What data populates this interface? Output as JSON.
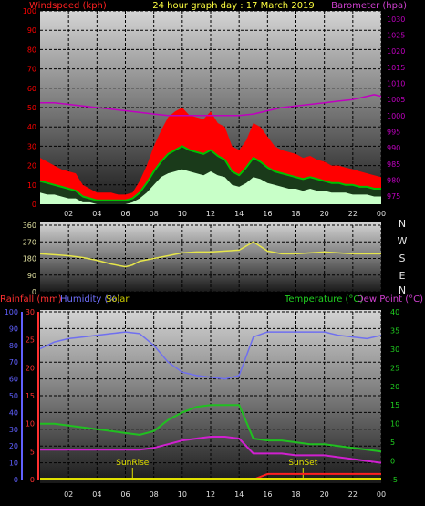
{
  "header": {
    "left_label": "Windspeed (kph)",
    "center_label": "24 hour graph day : 17 March 2019",
    "right_label": "Barometer (hpa)"
  },
  "mid_header": {
    "rain_label": "Rainfall (mm)",
    "humidity_label": "Humidity (%)",
    "solar_label": "Solar",
    "temp_label": "Temperature (°C)",
    "dew_label": "Dew Point (°C)"
  },
  "colors": {
    "wind_gust": "#ff0000",
    "wind_avg": "#c8ffc8",
    "wind_mid": "#00c000",
    "barometer": "#c000c0",
    "direction": "#e6e64a",
    "humidity": "#6f6ff0",
    "temperature": "#20c020",
    "dewpoint": "#d020d0",
    "rainfall": "#ff2020",
    "solar": "#e0e000",
    "rain_axis": "#ff3030",
    "humidity_axis": "#6060ff",
    "temp_axis": "#20d020"
  },
  "time_ticks": [
    "02",
    "04",
    "06",
    "08",
    "10",
    "12",
    "14",
    "16",
    "18",
    "20",
    "22",
    "00"
  ],
  "compass": [
    "N",
    "W",
    "S",
    "E",
    "N"
  ],
  "chart_data": [
    {
      "type": "line",
      "name_hint": "wind-barometer",
      "left_axis": {
        "ticks": [
          0,
          10,
          20,
          30,
          40,
          50,
          60,
          70,
          80,
          90,
          100
        ],
        "range": [
          0,
          100
        ]
      },
      "right_axis": {
        "ticks": [
          975,
          980,
          985,
          990,
          995,
          1000,
          1005,
          1010,
          1015,
          1020,
          1025,
          1030
        ],
        "range": [
          972.5,
          1032.5
        ]
      },
      "gust_x": [
        0,
        0.5,
        1,
        1.5,
        2,
        2.5,
        3,
        3.5,
        4,
        4.5,
        5,
        5.5,
        6,
        6.5,
        7,
        7.5,
        8,
        8.5,
        9,
        9.5,
        10,
        10.5,
        11,
        11.5,
        12,
        12.5,
        13,
        13.5,
        14,
        14.5,
        15,
        15.5,
        16,
        16.5,
        17,
        17.5,
        18,
        18.5,
        19,
        19.5,
        20,
        20.5,
        21,
        21.5,
        22,
        22.5,
        23,
        23.5,
        24
      ],
      "gust": [
        24,
        22,
        20,
        18,
        17,
        16,
        10,
        8,
        6,
        6,
        6,
        5,
        5,
        6,
        12,
        20,
        30,
        38,
        45,
        48,
        50,
        46,
        45,
        44,
        48,
        42,
        40,
        30,
        28,
        33,
        42,
        40,
        35,
        30,
        28,
        27,
        26,
        24,
        25,
        23,
        22,
        20,
        20,
        19,
        18,
        17,
        16,
        15,
        14
      ],
      "wind_avg": [
        12,
        11,
        10,
        9,
        8,
        7,
        4,
        3,
        2,
        2,
        2,
        2,
        2,
        3,
        6,
        11,
        17,
        22,
        26,
        28,
        30,
        28,
        27,
        26,
        28,
        25,
        23,
        17,
        15,
        19,
        24,
        22,
        19,
        17,
        16,
        15,
        14,
        13,
        14,
        13,
        12,
        11,
        11,
        10,
        10,
        9,
        9,
        8,
        8
      ],
      "wind_min": [
        6,
        5,
        5,
        4,
        3,
        3,
        1,
        1,
        0,
        0,
        0,
        0,
        0,
        1,
        3,
        6,
        10,
        14,
        16,
        17,
        18,
        17,
        16,
        15,
        17,
        15,
        14,
        10,
        9,
        11,
        14,
        13,
        11,
        10,
        9,
        8,
        8,
        7,
        8,
        7,
        7,
        6,
        6,
        6,
        5,
        5,
        5,
        4,
        4
      ],
      "baro_x": [
        0,
        1,
        2,
        3,
        4,
        5,
        6,
        7,
        8,
        9,
        10,
        11,
        12,
        13,
        14,
        15,
        16,
        17,
        18,
        19,
        20,
        21,
        22,
        23,
        23.5,
        24
      ],
      "barometer": [
        1004,
        1004,
        1003.5,
        1003,
        1002.5,
        1002,
        1001.5,
        1001,
        1000.5,
        1000,
        1000,
        1000,
        1000,
        1000,
        1000,
        1000.5,
        1001.5,
        1002.5,
        1003,
        1003.5,
        1004,
        1004.5,
        1005,
        1006,
        1006.5,
        1006
      ]
    },
    {
      "type": "line",
      "name_hint": "wind-direction",
      "left_axis": {
        "ticks": [
          0,
          90,
          180,
          270,
          360
        ],
        "range": [
          0,
          360
        ]
      },
      "x": [
        0,
        1,
        2,
        3,
        4,
        5,
        6,
        6.5,
        7,
        8,
        9,
        10,
        11,
        12,
        13,
        14,
        15,
        15.5,
        16,
        17,
        18,
        19,
        20,
        21,
        22,
        23,
        24
      ],
      "direction": [
        205,
        200,
        195,
        185,
        170,
        150,
        135,
        145,
        165,
        180,
        195,
        210,
        215,
        215,
        220,
        225,
        270,
        245,
        220,
        205,
        205,
        210,
        215,
        210,
        205,
        205,
        205
      ]
    },
    {
      "type": "line",
      "name_hint": "temperature-humidity",
      "rain_axis": {
        "ticks": [
          0,
          5,
          10,
          15,
          20,
          25,
          30
        ],
        "range": [
          0,
          30
        ]
      },
      "humidity_axis": {
        "ticks": [
          0,
          10,
          20,
          30,
          40,
          50,
          60,
          70,
          80,
          90,
          100
        ],
        "range": [
          0,
          100
        ]
      },
      "temp_axis": {
        "ticks": [
          -5,
          0,
          5,
          10,
          15,
          20,
          25,
          30,
          35,
          40
        ],
        "range": [
          -5,
          40
        ]
      },
      "x": [
        0,
        1,
        2,
        3,
        4,
        5,
        6,
        7,
        8,
        9,
        10,
        11,
        12,
        13,
        14,
        15,
        16,
        17,
        18,
        19,
        20,
        21,
        22,
        23,
        24
      ],
      "humidity": [
        78,
        82,
        84,
        85,
        86,
        87,
        88,
        87,
        80,
        70,
        64,
        62,
        61,
        60,
        62,
        85,
        88,
        88,
        88,
        88,
        88,
        86,
        85,
        84,
        86
      ],
      "temperature": [
        10,
        10,
        9.5,
        9,
        8.5,
        8,
        7.5,
        7,
        8,
        11,
        13,
        14.5,
        15,
        15,
        15,
        6,
        5.5,
        5.5,
        5,
        4.5,
        4.5,
        4,
        3.5,
        3,
        2.5
      ],
      "dewpoint": [
        3,
        3,
        3,
        3,
        3,
        3,
        3,
        3,
        3.5,
        4.5,
        5.5,
        6,
        6.5,
        6.5,
        6,
        2,
        2,
        2,
        1.5,
        1.5,
        1.5,
        1,
        0.5,
        0,
        -0.5
      ],
      "rainfall": [
        0,
        0,
        0,
        0,
        0,
        0,
        0,
        0,
        0,
        0,
        0,
        0,
        0,
        0,
        0,
        0,
        1,
        1,
        1,
        1,
        1,
        1,
        1,
        1,
        1
      ],
      "solar_markers": [
        {
          "label": "SunRise",
          "hour": 6.5
        },
        {
          "label": "SunSet",
          "hour": 18.5
        }
      ]
    }
  ]
}
